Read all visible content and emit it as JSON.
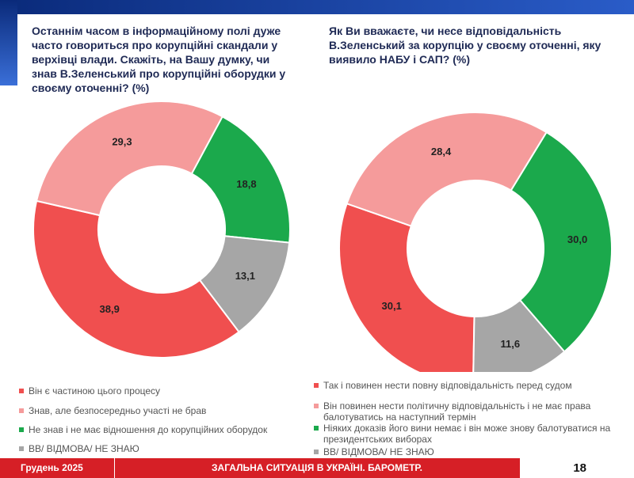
{
  "chart_data": [
    {
      "type": "donut",
      "title": "Останнім часом в інформаційному полі дуже часто говориться про корупційні скандали у верхівці влади. Скажіть, на Вашу думку, чи знав В.Зеленський про корупційні оборудки у своєму оточенні? (%)",
      "categories": [
        "Він є частиною цього процесу",
        "Знав, але безпосередньо участі не брав",
        "Не знав і не має відношення до корупційних оборудок",
        "ВВ/ ВІДМОВА/ НЕ ЗНАЮ"
      ],
      "values": [
        38.9,
        29.3,
        18.8,
        13.1
      ],
      "value_labels": [
        "38,9",
        "29,3",
        "18,8",
        "13,1"
      ],
      "colors": [
        "#f04f4f",
        "#f59b9b",
        "#1ba94c",
        "#a6a6a6"
      ]
    },
    {
      "type": "donut",
      "title": "Як Ви вважаєте, чи несе відповідальність В.Зеленський за корупцію у своєму оточенні, яку виявило НАБУ і САП? (%)",
      "categories": [
        "Так і повинен нести повну відповідальність перед судом",
        "Він повинен нести політичну відповідальність і не має права балотуватись на наступний термін",
        "Ніяких доказів його вини немає і він може знову балотуватися на президентських виборах",
        "ВВ/ ВІДМОВА/ НЕ ЗНАЮ"
      ],
      "values": [
        30.1,
        28.4,
        30.0,
        11.6
      ],
      "value_labels": [
        "30,1",
        "28,4",
        "30,0",
        "11,6"
      ],
      "colors": [
        "#f04f4f",
        "#f59b9b",
        "#1ba94c",
        "#a6a6a6"
      ]
    }
  ],
  "footer": {
    "date": "Грудень 2025",
    "title": "ЗАГАЛЬНА СИТУАЦІЯ В УКРАЇНІ. БАРОМЕТР.",
    "page": "18"
  }
}
